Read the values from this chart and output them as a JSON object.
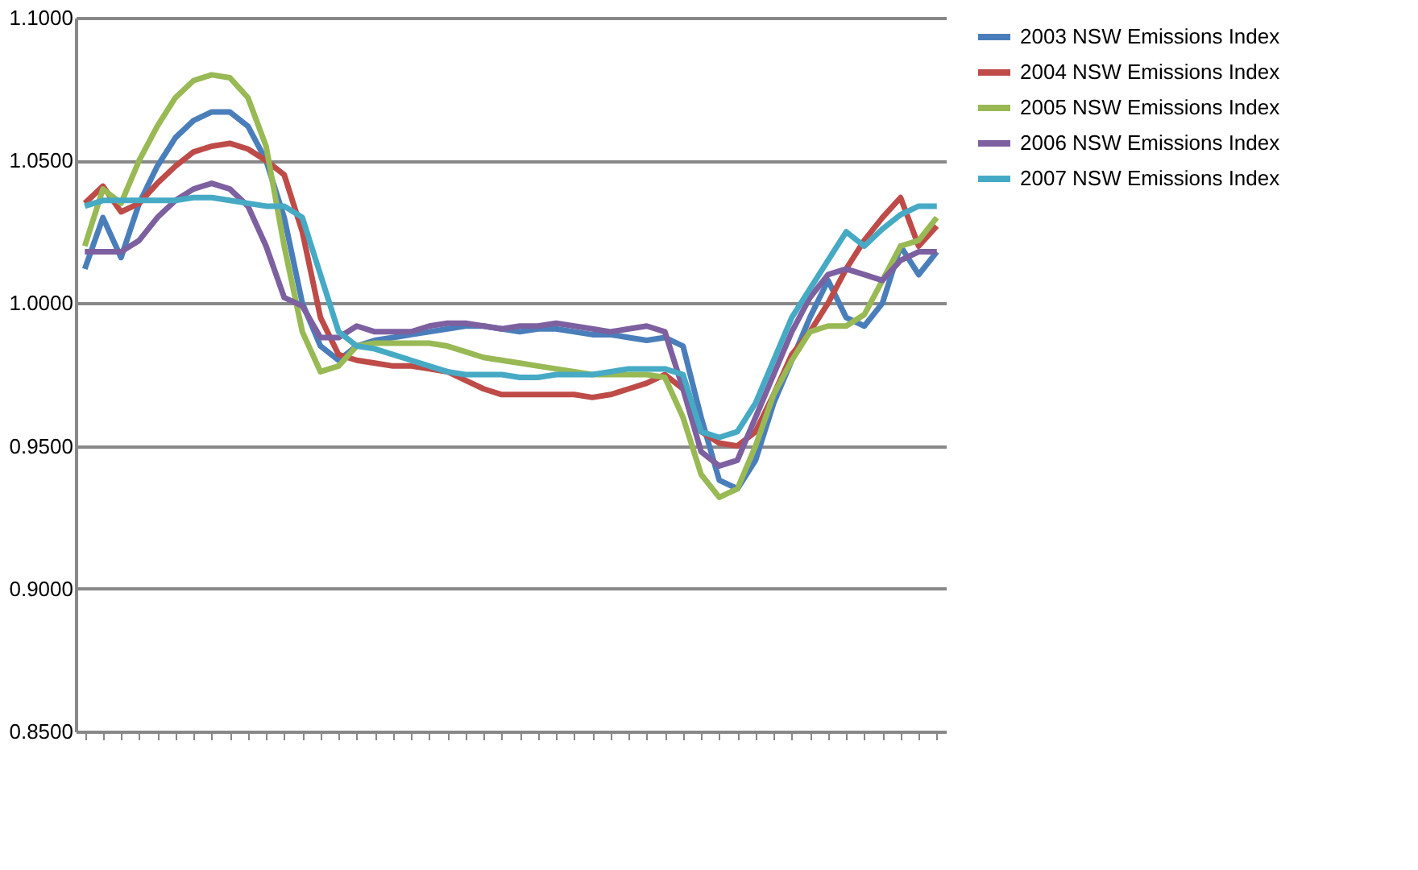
{
  "chart_data": {
    "type": "line",
    "categories": [
      null,
      null,
      null,
      null,
      null,
      null,
      null,
      null,
      null,
      null,
      null,
      null,
      null,
      null,
      null,
      null,
      null,
      null,
      null,
      null,
      null,
      null,
      null,
      null,
      null,
      null,
      null,
      null,
      null,
      null,
      null,
      null,
      null,
      null,
      null,
      null,
      null,
      null,
      null,
      null,
      null,
      null,
      null,
      null,
      null,
      null,
      null,
      null
    ],
    "series": [
      {
        "name": "2003 NSW Emissions Index",
        "color": "#4a7ebb",
        "values": [
          1.012,
          1.03,
          1.016,
          1.035,
          1.048,
          1.058,
          1.064,
          1.067,
          1.067,
          1.062,
          1.05,
          1.03,
          1.0,
          0.985,
          0.98,
          0.985,
          0.987,
          0.988,
          0.989,
          0.99,
          0.991,
          0.992,
          0.992,
          0.991,
          0.99,
          0.991,
          0.991,
          0.99,
          0.989,
          0.989,
          0.988,
          0.987,
          0.988,
          0.985,
          0.96,
          0.938,
          0.935,
          0.945,
          0.965,
          0.98,
          0.995,
          1.008,
          0.995,
          0.992,
          1.0,
          1.02,
          1.01,
          1.018
        ]
      },
      {
        "name": "2004 NSW Emissions Index",
        "color": "#be4b48",
        "values": [
          1.035,
          1.041,
          1.032,
          1.035,
          1.042,
          1.048,
          1.053,
          1.055,
          1.056,
          1.054,
          1.05,
          1.045,
          1.025,
          0.995,
          0.982,
          0.98,
          0.979,
          0.978,
          0.978,
          0.977,
          0.976,
          0.973,
          0.97,
          0.968,
          0.968,
          0.968,
          0.968,
          0.968,
          0.967,
          0.968,
          0.97,
          0.972,
          0.975,
          0.97,
          0.955,
          0.951,
          0.95,
          0.955,
          0.968,
          0.982,
          0.99,
          1.0,
          1.012,
          1.022,
          1.03,
          1.037,
          1.02,
          1.027
        ]
      },
      {
        "name": "2005 NSW Emissions Index",
        "color": "#98b954",
        "values": [
          1.02,
          1.04,
          1.035,
          1.05,
          1.062,
          1.072,
          1.078,
          1.08,
          1.079,
          1.072,
          1.055,
          1.02,
          0.99,
          0.976,
          0.978,
          0.985,
          0.986,
          0.986,
          0.986,
          0.986,
          0.985,
          0.983,
          0.981,
          0.98,
          0.979,
          0.978,
          0.977,
          0.976,
          0.975,
          0.975,
          0.975,
          0.975,
          0.974,
          0.96,
          0.94,
          0.932,
          0.935,
          0.95,
          0.968,
          0.98,
          0.99,
          0.992,
          0.992,
          0.996,
          1.008,
          1.02,
          1.022,
          1.03
        ]
      },
      {
        "name": "2006 NSW Emissions Index",
        "color": "#7d60a0",
        "values": [
          1.018,
          1.018,
          1.018,
          1.022,
          1.03,
          1.036,
          1.04,
          1.042,
          1.04,
          1.034,
          1.02,
          1.002,
          0.999,
          0.988,
          0.988,
          0.992,
          0.99,
          0.99,
          0.99,
          0.992,
          0.993,
          0.993,
          0.992,
          0.991,
          0.992,
          0.992,
          0.993,
          0.992,
          0.991,
          0.99,
          0.991,
          0.992,
          0.99,
          0.97,
          0.948,
          0.943,
          0.945,
          0.96,
          0.975,
          0.99,
          1.002,
          1.01,
          1.012,
          1.01,
          1.008,
          1.015,
          1.018,
          1.018
        ]
      },
      {
        "name": "2007 NSW Emissions Index",
        "color": "#46aac5",
        "values": [
          1.034,
          1.036,
          1.036,
          1.036,
          1.036,
          1.036,
          1.037,
          1.037,
          1.036,
          1.035,
          1.034,
          1.034,
          1.03,
          1.01,
          0.99,
          0.985,
          0.984,
          0.982,
          0.98,
          0.978,
          0.976,
          0.975,
          0.975,
          0.975,
          0.974,
          0.974,
          0.975,
          0.975,
          0.975,
          0.976,
          0.977,
          0.977,
          0.977,
          0.975,
          0.955,
          0.953,
          0.955,
          0.965,
          0.98,
          0.995,
          1.005,
          1.015,
          1.025,
          1.02,
          1.026,
          1.031,
          1.034,
          1.034
        ]
      }
    ],
    "ylim": [
      0.85,
      1.1
    ],
    "yticks": [
      {
        "value": 0.85,
        "label": "0.8500"
      },
      {
        "value": 0.9,
        "label": "0.9000"
      },
      {
        "value": 0.95,
        "label": "0.9500"
      },
      {
        "value": 1.0,
        "label": "1.0000"
      },
      {
        "value": 1.05,
        "label": "1.0500"
      },
      {
        "value": 1.1,
        "label": "1.1000"
      }
    ],
    "grid": "y",
    "legend": "right",
    "tick_labels": "y",
    "marker": "none",
    "line_style": "solid"
  }
}
